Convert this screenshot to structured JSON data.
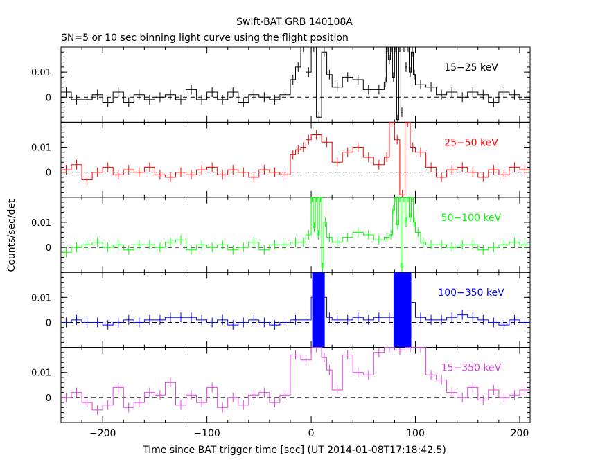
{
  "chart_data": {
    "type": "line",
    "title": "Swift-BAT GRB 140108A",
    "subtitle": "SN=5 or 10 sec binning light curve using the flight position",
    "xlabel": "Time since BAT trigger time [sec] (UT 2014-01-08T17:18:42.5)",
    "ylabel": "Counts/sec/det",
    "xlim": [
      -240,
      210
    ],
    "ylim": [
      -0.01,
      0.02
    ],
    "x_ticks": [
      -200,
      -100,
      0,
      100,
      200
    ],
    "x_tick_labels": [
      "−200",
      "−100",
      "0",
      "100",
      "200"
    ],
    "y_ticks": [
      0,
      0.01
    ],
    "y_tick_labels": [
      "0",
      "0.01"
    ],
    "reference_line": 0,
    "grid": false,
    "panels": [
      {
        "name": "15−25 keV",
        "color": "#000000",
        "mode": "step",
        "x": [
          -240,
          -230,
          -220,
          -210,
          -200,
          -190,
          -180,
          -170,
          -160,
          -150,
          -140,
          -130,
          -120,
          -110,
          -100,
          -90,
          -80,
          -70,
          -60,
          -50,
          -40,
          -30,
          -20,
          -15,
          -10,
          -5,
          0,
          5,
          10,
          15,
          20,
          30,
          40,
          50,
          60,
          70,
          72,
          74,
          76,
          78,
          80,
          82,
          84,
          86,
          88,
          90,
          92,
          94,
          96,
          98,
          100,
          110,
          120,
          130,
          140,
          150,
          160,
          170,
          180,
          190,
          200
        ],
        "values": [
          0.002,
          -0.001,
          -0.001,
          0.001,
          -0.002,
          0.002,
          -0.002,
          0.001,
          -0.001,
          0,
          0.001,
          -0.001,
          0.003,
          -0.001,
          0.002,
          -0.001,
          0.002,
          -0.002,
          0.001,
          0,
          -0.001,
          0.001,
          0.007,
          0.012,
          0.02,
          0.01,
          0.02,
          -0.008,
          0.018,
          0.009,
          0.004,
          0.008,
          0.007,
          0.003,
          0.003,
          0.006,
          0.02,
          0.015,
          0.02,
          0.008,
          0.02,
          -0.009,
          0.02,
          -0.006,
          0.02,
          0.012,
          0.02,
          0.01,
          0.018,
          0.009,
          0.005,
          0.004,
          0.001,
          0.002,
          0,
          0.002,
          0.001,
          -0.002,
          0.002,
          0.001,
          -0.001
        ]
      },
      {
        "name": "25−50 keV",
        "color": "#ff0000",
        "mode": "step",
        "x": [
          -240,
          -230,
          -220,
          -210,
          -200,
          -190,
          -180,
          -170,
          -160,
          -150,
          -140,
          -130,
          -120,
          -110,
          -100,
          -90,
          -80,
          -70,
          -60,
          -50,
          -40,
          -30,
          -20,
          -15,
          -10,
          -5,
          0,
          10,
          20,
          30,
          40,
          50,
          60,
          70,
          75,
          80,
          85,
          90,
          95,
          100,
          110,
          120,
          130,
          140,
          150,
          160,
          170,
          180,
          190,
          200
        ],
        "values": [
          0.001,
          0.003,
          -0.003,
          0,
          0.002,
          -0.001,
          0.001,
          0,
          0.002,
          -0.001,
          -0.002,
          0,
          -0.001,
          0.001,
          0.002,
          -0.001,
          0.001,
          0,
          -0.002,
          0.001,
          0,
          -0.001,
          0.007,
          0.009,
          0.01,
          0.013,
          0.015,
          0.012,
          0.004,
          0.008,
          0.01,
          0.006,
          0.003,
          0.006,
          0.02,
          0.013,
          -0.009,
          0.02,
          0.01,
          0.008,
          0.002,
          -0.002,
          0.001,
          0.002,
          0,
          -0.002,
          0.001,
          -0.001,
          0.002,
          0.001
        ]
      },
      {
        "name": "50−100 keV",
        "color": "#00ff00",
        "mode": "step",
        "x": [
          -240,
          -230,
          -220,
          -210,
          -200,
          -190,
          -180,
          -170,
          -160,
          -150,
          -140,
          -130,
          -120,
          -110,
          -100,
          -90,
          -80,
          -70,
          -60,
          -50,
          -40,
          -30,
          -20,
          -10,
          -5,
          0,
          2,
          4,
          6,
          8,
          10,
          12,
          15,
          20,
          30,
          40,
          50,
          60,
          70,
          75,
          78,
          80,
          82,
          84,
          86,
          88,
          90,
          92,
          94,
          96,
          98,
          100,
          105,
          110,
          120,
          130,
          140,
          150,
          160,
          170,
          180,
          190,
          200
        ],
        "values": [
          -0.002,
          0,
          0.001,
          0.002,
          0,
          0.001,
          -0.001,
          0.001,
          0.001,
          0,
          0.002,
          0.003,
          -0.001,
          0.001,
          0,
          0.001,
          -0.001,
          0,
          0.002,
          -0.001,
          0.001,
          0.001,
          0.002,
          0.002,
          0.005,
          0.02,
          0.008,
          0.02,
          0.005,
          0.02,
          -0.008,
          0.01,
          0.004,
          0.002,
          0.004,
          0.006,
          0.005,
          0.003,
          0.004,
          0.005,
          0.015,
          0.02,
          0.009,
          0.02,
          -0.008,
          0.02,
          0.01,
          0.02,
          0.012,
          0.02,
          0.01,
          0.006,
          0.002,
          0.001,
          0.001,
          0,
          0.001,
          0.001,
          -0.001,
          0,
          0.001,
          0.002,
          0.001
        ]
      },
      {
        "name": "100−350 keV",
        "color": "#0000ff",
        "mode": "band",
        "x": [
          -240,
          -230,
          -220,
          -210,
          -200,
          -190,
          -180,
          -170,
          -160,
          -150,
          -140,
          -130,
          -120,
          -110,
          -100,
          -90,
          -80,
          -70,
          -60,
          -50,
          -40,
          -30,
          -20,
          -10,
          0,
          15,
          20,
          30,
          40,
          50,
          60,
          70,
          80,
          100,
          110,
          120,
          130,
          140,
          150,
          160,
          170,
          180,
          190,
          200
        ],
        "values": [
          0,
          0.001,
          0,
          0,
          -0.001,
          0,
          0.001,
          0,
          0.001,
          0.001,
          0.002,
          0.002,
          0.002,
          0.001,
          0,
          0.001,
          -0.001,
          0,
          0.001,
          0,
          -0.001,
          0,
          0.001,
          0.001,
          0.01,
          0.002,
          0.001,
          0.001,
          0.002,
          0.001,
          0.002,
          0.002,
          0.008,
          0.002,
          0.001,
          0.001,
          0.002,
          0.003,
          0.002,
          0.001,
          0,
          -0.001,
          0.001,
          0
        ],
        "bands": [
          [
            1,
            13
          ],
          [
            79,
            96
          ]
        ]
      },
      {
        "name": "15−350 keV",
        "color": "#e040e0",
        "mode": "step",
        "x": [
          -240,
          -230,
          -220,
          -210,
          -200,
          -190,
          -180,
          -170,
          -160,
          -150,
          -140,
          -130,
          -120,
          -110,
          -100,
          -90,
          -80,
          -70,
          -60,
          -50,
          -40,
          -30,
          -20,
          -10,
          0,
          10,
          15,
          20,
          30,
          40,
          50,
          60,
          70,
          80,
          90,
          100,
          110,
          120,
          130,
          140,
          150,
          160,
          170,
          180,
          190,
          200
        ],
        "values": [
          0,
          0.002,
          -0.002,
          -0.005,
          -0.003,
          0.004,
          -0.004,
          -0.002,
          0.002,
          0.001,
          0.006,
          -0.003,
          0.001,
          -0.002,
          0.004,
          -0.004,
          0,
          -0.003,
          0.001,
          0.002,
          -0.002,
          0.001,
          0.017,
          0.015,
          0.02,
          0.016,
          0.011,
          0.003,
          0.017,
          0.01,
          0.009,
          0.018,
          0.02,
          0.019,
          0.02,
          0.02,
          0.009,
          0.007,
          0.002,
          0,
          0.004,
          -0.001,
          0.003,
          0,
          0.001,
          0.003
        ]
      }
    ]
  }
}
